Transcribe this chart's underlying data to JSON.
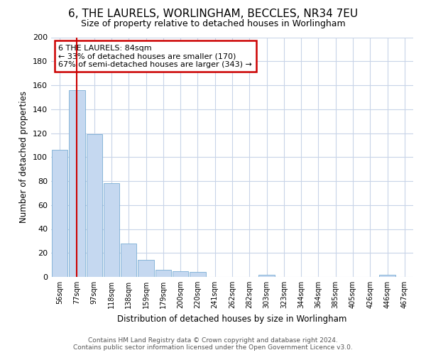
{
  "title": "6, THE LAURELS, WORLINGHAM, BECCLES, NR34 7EU",
  "subtitle": "Size of property relative to detached houses in Worlingham",
  "xlabel": "Distribution of detached houses by size in Worlingham",
  "ylabel": "Number of detached properties",
  "categories": [
    "56sqm",
    "77sqm",
    "97sqm",
    "118sqm",
    "138sqm",
    "159sqm",
    "179sqm",
    "200sqm",
    "220sqm",
    "241sqm",
    "262sqm",
    "282sqm",
    "303sqm",
    "323sqm",
    "344sqm",
    "364sqm",
    "385sqm",
    "405sqm",
    "426sqm",
    "446sqm",
    "467sqm"
  ],
  "values": [
    106,
    156,
    119,
    78,
    28,
    14,
    6,
    5,
    4,
    0,
    0,
    0,
    2,
    0,
    0,
    0,
    0,
    0,
    0,
    2,
    0
  ],
  "bar_color": "#c5d8f0",
  "bar_edge_color": "#7aadd4",
  "grid_color": "#c8d4e8",
  "background_color": "#ffffff",
  "plot_bg_color": "#ffffff",
  "property_line_x": 1,
  "property_label": "6 THE LAURELS: 84sqm",
  "annotation_line1": "← 33% of detached houses are smaller (170)",
  "annotation_line2": "67% of semi-detached houses are larger (343) →",
  "annotation_box_color": "#cc0000",
  "footer_line1": "Contains HM Land Registry data © Crown copyright and database right 2024.",
  "footer_line2": "Contains public sector information licensed under the Open Government Licence v3.0.",
  "ylim": [
    0,
    200
  ],
  "yticks": [
    0,
    20,
    40,
    60,
    80,
    100,
    120,
    140,
    160,
    180,
    200
  ]
}
